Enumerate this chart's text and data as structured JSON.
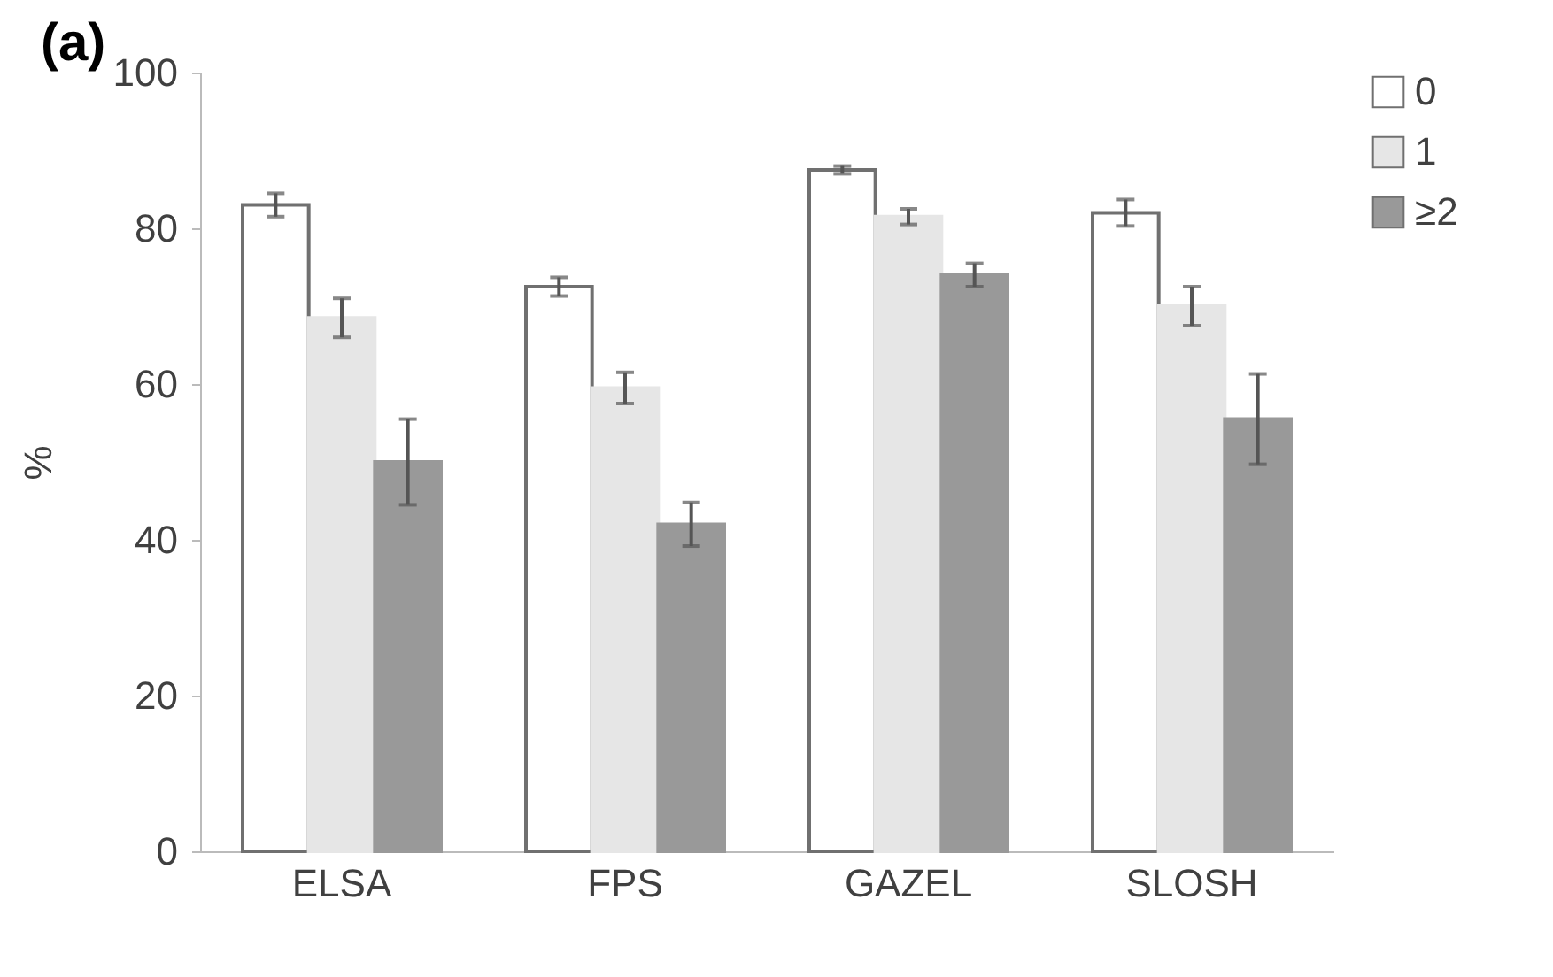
{
  "chart_data": {
    "type": "bar",
    "title": "(a)",
    "ylabel": "%",
    "categories": [
      "ELSA",
      "FPS",
      "GAZEL",
      "SLOSH"
    ],
    "series": [
      {
        "name": "0",
        "color": "#ffffff",
        "values": [
          83,
          72.5,
          87.5,
          82
        ],
        "errors": [
          1.5,
          1.2,
          0.5,
          1.7
        ]
      },
      {
        "name": "1",
        "color": "#e6e6e6",
        "values": [
          68.5,
          59.5,
          81.5,
          70
        ],
        "errors": [
          2.5,
          2,
          1,
          2.5
        ]
      },
      {
        "name": "≥2",
        "color": "#999999",
        "values": [
          50,
          42,
          74,
          55.5
        ],
        "errors": [
          5.5,
          2.8,
          1.5,
          5.8
        ]
      }
    ],
    "ylim": [
      0,
      100
    ],
    "yticks": [
      0,
      20,
      40,
      60,
      80,
      100
    ],
    "grid": false,
    "legend": "top right"
  }
}
